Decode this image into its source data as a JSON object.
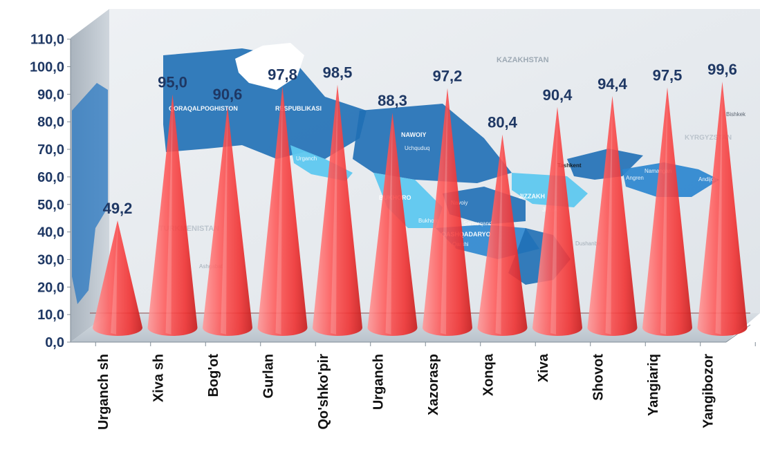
{
  "chart_data": {
    "type": "bar",
    "bar_shape": "cone",
    "categories": [
      "Urganch sh",
      "Xiva sh",
      "Bog'ot",
      "Gurlan",
      "Qo'shko'pir",
      "Urganch",
      "Xazorasp",
      "Xonqa",
      "Xiva",
      "Shovot",
      "Yangiariq",
      "Yangibozor"
    ],
    "values": [
      49.2,
      95.0,
      90.6,
      97.8,
      98.5,
      88.3,
      97.2,
      80.4,
      90.4,
      94.4,
      97.5,
      99.6
    ],
    "value_labels": [
      "49,2",
      "95,0",
      "90,6",
      "97,8",
      "98,5",
      "88,3",
      "97,2",
      "80,4",
      "90,4",
      "94,4",
      "97,5",
      "99,6"
    ],
    "y_ticks": [
      "0,0",
      "10,0",
      "20,0",
      "30,0",
      "40,0",
      "50,0",
      "60,0",
      "70,0",
      "80,0",
      "90,0",
      "100,0",
      "110,0"
    ],
    "ylim": [
      0,
      110
    ],
    "grid": false,
    "title": "",
    "xlabel": "",
    "ylabel": "",
    "colors": {
      "cone": "#ff4d4d",
      "cone_dark": "#d41a1a",
      "label": "#1f3864",
      "axis_text": "#1f3864",
      "map_dark": "#1f6fb5",
      "map_light": "#5ec8ef",
      "floor": "#c9d3dc",
      "wall": "#e8ecef"
    }
  },
  "background": {
    "map_labels": [
      "QORAQALPOGHISTON",
      "RESPUBLIKASI",
      "KAZAKHSTAN",
      "NAWOIY",
      "BUKHORO",
      "JIZZAKH",
      "QASHQADARYO",
      "TURKMENISTAN",
      "KYRGYZSTAN",
      "Tashkent",
      "Bishkek",
      "Namangan",
      "Andijon",
      "Samarqand",
      "Dushanbe",
      "Ashgabat",
      "Bukhoro",
      "Uchquduq",
      "Urganch",
      "Angren",
      "Jizzakh",
      "Qarshi",
      "Navoiy"
    ]
  }
}
